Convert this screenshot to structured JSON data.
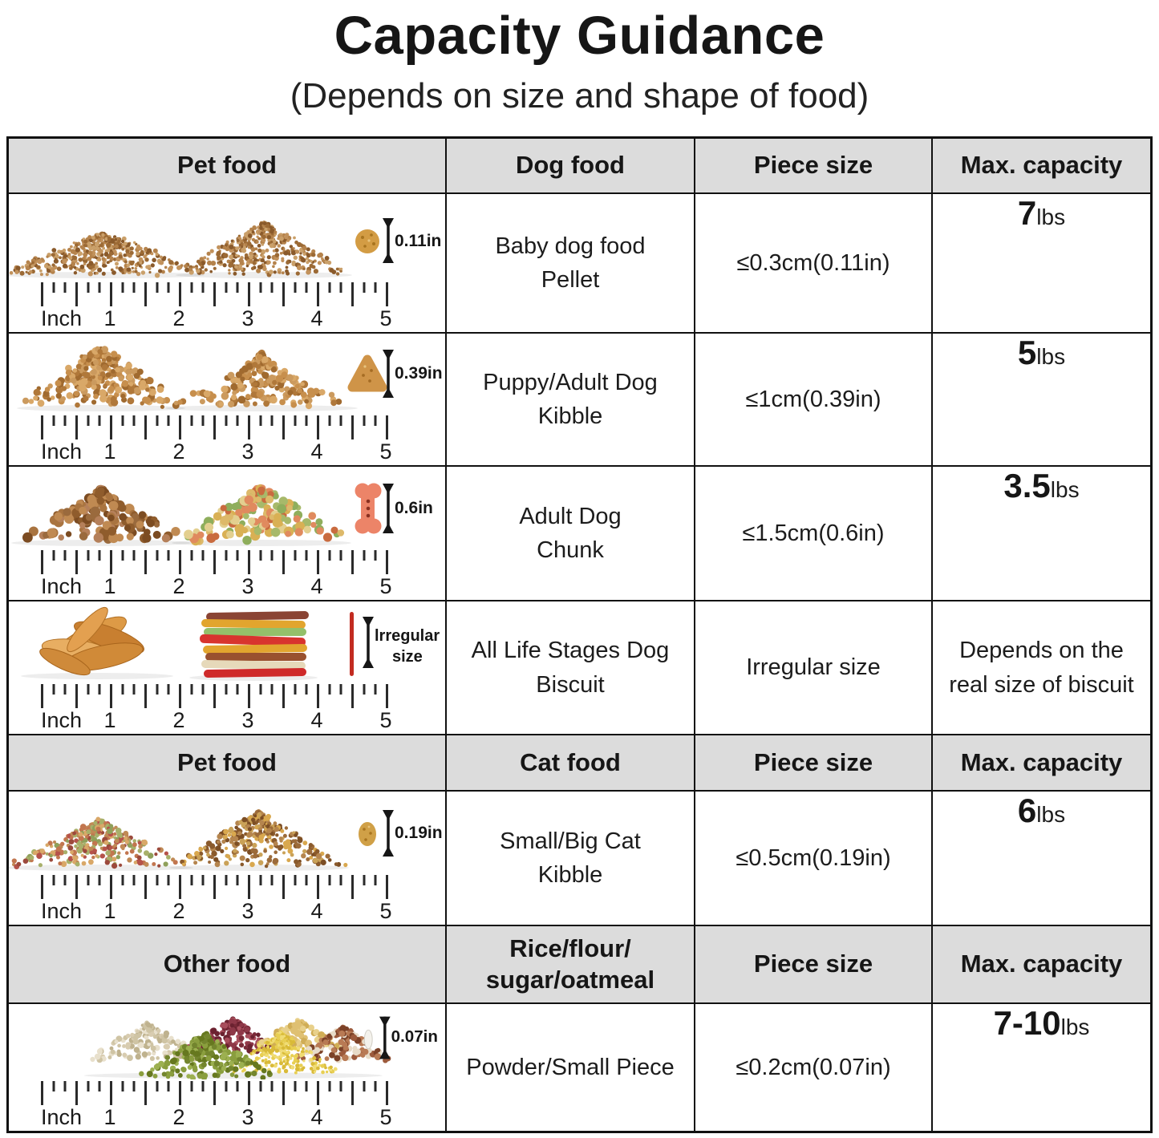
{
  "page": {
    "title": "Capacity Guidance",
    "subtitle": "(Depends on size and shape of food)"
  },
  "colors": {
    "header_bg": "#dcdcdc",
    "border": "#111111",
    "text": "#1c1c1c"
  },
  "ruler": {
    "unit": "Inch",
    "marks": [
      "1",
      "2",
      "3",
      "4",
      "5"
    ]
  },
  "table": {
    "section_headers": [
      {
        "pet": "Pet food",
        "type": "Dog food",
        "piece": "Piece size",
        "capacity": "Max. capacity"
      },
      {
        "pet": "Pet food",
        "type": "Cat food",
        "piece": "Piece size",
        "capacity": "Max. capacity"
      },
      {
        "pet": "Other food",
        "type_line1": "Rice/flour/",
        "type_line2": "sugar/oatmeal",
        "piece": "Piece size",
        "capacity": "Max. capacity"
      }
    ],
    "rows": [
      {
        "name_line1": "Baby dog food",
        "name_line2": "Pellet",
        "piece_size": "≤0.3cm(0.11in)",
        "capacity_value": "7",
        "capacity_unit": "lbs",
        "marker_label": "0.11in"
      },
      {
        "name_line1": "Puppy/Adult Dog",
        "name_line2": "Kibble",
        "piece_size": "≤1cm(0.39in)",
        "capacity_value": "5",
        "capacity_unit": "lbs",
        "marker_label": "0.39in"
      },
      {
        "name_line1": "Adult Dog",
        "name_line2": "Chunk",
        "piece_size": "≤1.5cm(0.6in)",
        "capacity_value": "3.5",
        "capacity_unit": "lbs",
        "marker_label": "0.6in"
      },
      {
        "name_line1": "All Life Stages Dog",
        "name_line2": "Biscuit",
        "piece_size": "Irregular size",
        "capacity_line1": "Depends on the",
        "capacity_line2": "real size of biscuit",
        "marker_label_line1": "lrregular",
        "marker_label_line2": "size"
      },
      {
        "name_line1": "Small/Big Cat",
        "name_line2": "Kibble",
        "piece_size": "≤0.5cm(0.19in)",
        "capacity_value": "6",
        "capacity_unit": "lbs",
        "marker_label": "0.19in"
      },
      {
        "name_line1": "Powder/Small Piece",
        "piece_size": "≤0.2cm(0.07in)",
        "capacity_value": "7-10",
        "capacity_unit": "lbs",
        "marker_label": "0.07in"
      }
    ]
  }
}
